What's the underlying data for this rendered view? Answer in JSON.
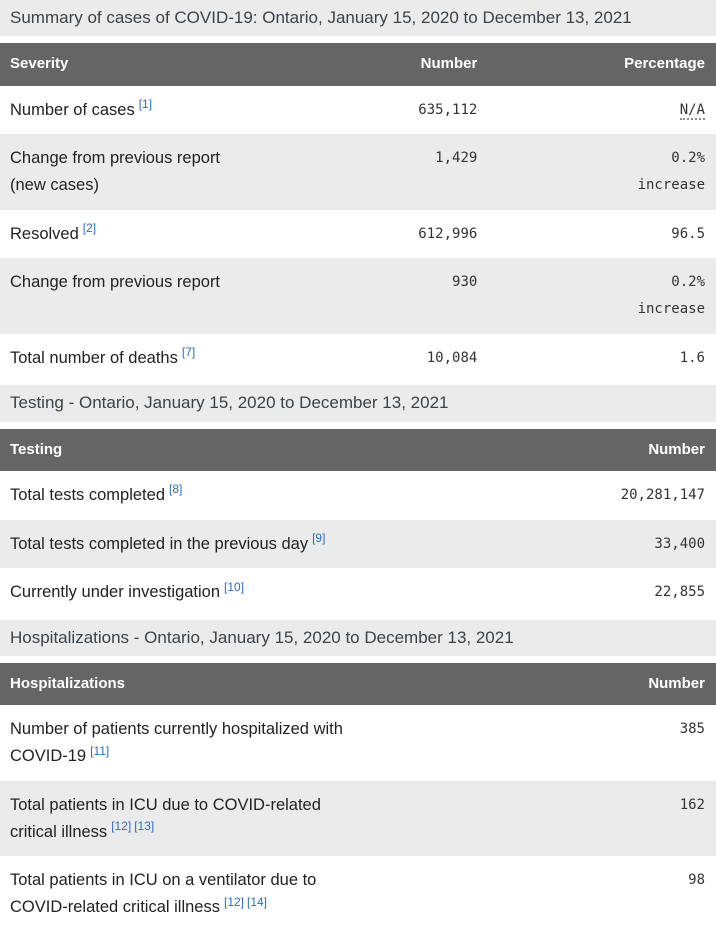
{
  "colors": {
    "header_bg": "#656565",
    "header_text": "#ffffff",
    "stripe_bg": "#ebebeb",
    "caption_text": "#3c4247",
    "label_text": "#222222",
    "number_text": "#333333",
    "link_blue": "#2a6ebe"
  },
  "tables": [
    {
      "key": "severity",
      "caption": "Summary of cases of COVID-19: Ontario, January 15, 2020 to December 13, 2021",
      "columns": [
        "Severity",
        "Number",
        "Percentage"
      ],
      "rows": [
        {
          "label": "Number of cases",
          "footnotes": [
            "[1]"
          ],
          "number": "635,112",
          "percentage": "N/A",
          "percentage_is_abbr": true
        },
        {
          "label": "Change from previous report (new cases)",
          "footnotes": [],
          "number": "1,429",
          "percentage": "0.2% increase"
        },
        {
          "label": "Resolved",
          "footnotes": [
            "[2]"
          ],
          "number": "612,996",
          "percentage": "96.5"
        },
        {
          "label": "Change from previous report",
          "footnotes": [],
          "number": "930",
          "percentage": "0.2% increase"
        },
        {
          "label": "Total number of deaths",
          "footnotes": [
            "[7]"
          ],
          "number": "10,084",
          "percentage": "1.6"
        }
      ]
    },
    {
      "key": "testing",
      "caption": "Testing - Ontario, January 15, 2020 to December 13, 2021",
      "columns": [
        "Testing",
        "Number"
      ],
      "rows": [
        {
          "label": "Total tests completed",
          "footnotes": [
            "[8]"
          ],
          "number": "20,281,147"
        },
        {
          "label": "Total tests completed in the previous day",
          "footnotes": [
            "[9]"
          ],
          "number": "33,400"
        },
        {
          "label": "Currently under investigation",
          "footnotes": [
            "[10]"
          ],
          "number": "22,855"
        }
      ]
    },
    {
      "key": "hospitalizations",
      "caption": "Hospitalizations - Ontario, January 15, 2020 to December 13, 2021",
      "columns": [
        "Hospitalizations",
        "Number"
      ],
      "rows": [
        {
          "label": "Number of patients currently hospitalized with COVID-19",
          "footnotes": [
            "[11]"
          ],
          "number": "385"
        },
        {
          "label": "Total patients in ICU due to COVID-related critical illness",
          "footnotes": [
            "[12]",
            "[13]"
          ],
          "number": "162"
        },
        {
          "label": "Total patients in ICU on a ventilator due to COVID-related critical illness",
          "footnotes": [
            "[12]",
            "[14]"
          ],
          "number": "98"
        }
      ]
    }
  ]
}
